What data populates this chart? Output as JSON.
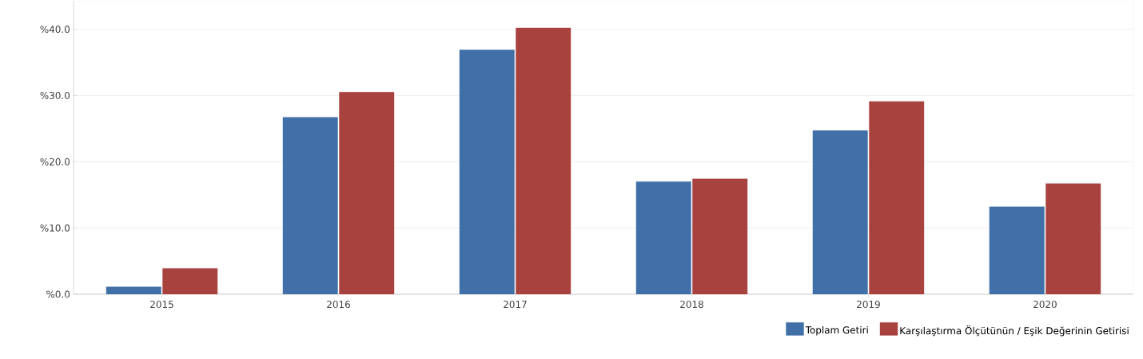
{
  "chart_data": {
    "type": "bar",
    "categories": [
      "2015",
      "2016",
      "2017",
      "2018",
      "2019",
      "2020"
    ],
    "series": [
      {
        "name": "Toplam Getiri",
        "color": "#4170a8",
        "values": [
          1.1,
          26.7,
          36.9,
          17.0,
          24.7,
          13.2
        ]
      },
      {
        "name": "Karşılaştırma Ölçütünün / Eşik Değerinin Getirisi",
        "color": "#a8423f",
        "values": [
          3.9,
          30.5,
          40.2,
          17.4,
          29.1,
          16.7
        ]
      }
    ],
    "ylim": [
      0,
      44.3
    ],
    "yticks": [
      {
        "value": 0,
        "label": "%0.0"
      },
      {
        "value": 10,
        "label": "%10.0"
      },
      {
        "value": 20,
        "label": "%20.0"
      },
      {
        "value": 30,
        "label": "%30.0"
      },
      {
        "value": 40,
        "label": "%40.0"
      }
    ],
    "grid": "y",
    "legend": "bottom right"
  }
}
